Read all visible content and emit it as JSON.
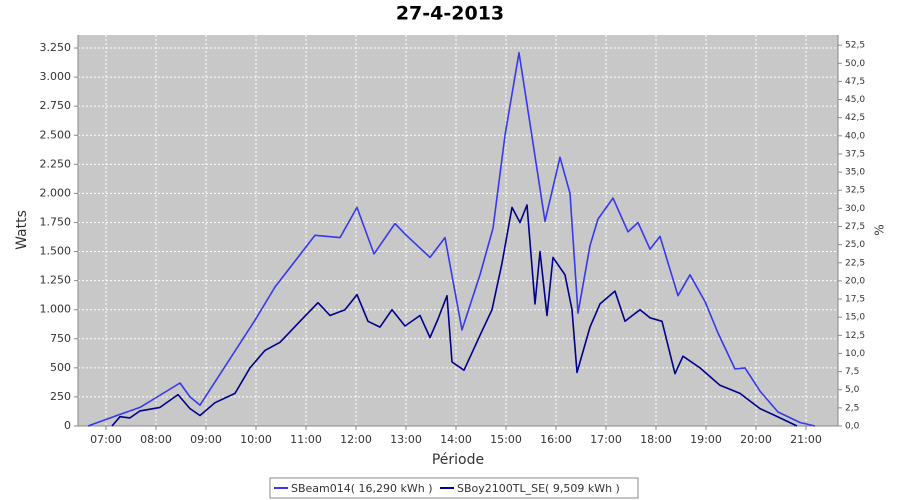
{
  "chart_data": {
    "type": "line",
    "title": "27-4-2013",
    "x_label": "Période",
    "y_label": "Watts",
    "y2_label": "%",
    "xlim": [
      6.44,
      21.64
    ],
    "xticks": [
      {
        "value": 7,
        "label": "07:00"
      },
      {
        "value": 8,
        "label": "08:00"
      },
      {
        "value": 9,
        "label": "09:00"
      },
      {
        "value": 10,
        "label": "10:00"
      },
      {
        "value": 11,
        "label": "11:00"
      },
      {
        "value": 12,
        "label": "12:00"
      },
      {
        "value": 13,
        "label": "13:00"
      },
      {
        "value": 14,
        "label": "14:00"
      },
      {
        "value": 15,
        "label": "15:00"
      },
      {
        "value": 16,
        "label": "16:00"
      },
      {
        "value": 17,
        "label": "17:00"
      },
      {
        "value": 18,
        "label": "18:00"
      },
      {
        "value": 19,
        "label": "19:00"
      },
      {
        "value": 20,
        "label": "20:00"
      },
      {
        "value": 21,
        "label": "21:00"
      }
    ],
    "ylim": [
      0,
      3362
    ],
    "yticks": [
      0,
      250,
      500,
      750,
      {
        "value": 1000,
        "label": "1.000"
      },
      {
        "value": 1250,
        "label": "1.250"
      },
      {
        "value": 1500,
        "label": "1.500"
      },
      {
        "value": 1750,
        "label": "1.750"
      },
      {
        "value": 2000,
        "label": "2.000"
      },
      {
        "value": 2250,
        "label": "2.250"
      },
      {
        "value": 2500,
        "label": "2.500"
      },
      {
        "value": 2750,
        "label": "2.750"
      },
      {
        "value": 3000,
        "label": "3.000"
      },
      {
        "value": 3250,
        "label": "3.250"
      }
    ],
    "y2lim": [
      0,
      53.9
    ],
    "y2ticks": [
      {
        "value": 0,
        "label": "0,0"
      },
      {
        "value": 2.5,
        "label": "2,5"
      },
      {
        "value": 5,
        "label": "5,0"
      },
      {
        "value": 7.5,
        "label": "7,5"
      },
      {
        "value": 10,
        "label": "10,0"
      },
      {
        "value": 12.5,
        "label": "12,5"
      },
      {
        "value": 15,
        "label": "15,0"
      },
      {
        "value": 17.5,
        "label": "17,5"
      },
      {
        "value": 20,
        "label": "20,0"
      },
      {
        "value": 22.5,
        "label": "22,5"
      },
      {
        "value": 25,
        "label": "25,0"
      },
      {
        "value": 27.5,
        "label": "27,5"
      },
      {
        "value": 30,
        "label": "30,0"
      },
      {
        "value": 32.5,
        "label": "32,5"
      },
      {
        "value": 35,
        "label": "35,0"
      },
      {
        "value": 37.5,
        "label": "37,5"
      },
      {
        "value": 40,
        "label": "40,0"
      },
      {
        "value": 42.5,
        "label": "42,5"
      },
      {
        "value": 45,
        "label": "45,0"
      },
      {
        "value": 47.5,
        "label": "47,5"
      },
      {
        "value": 50,
        "label": "50,0"
      },
      {
        "value": 52.5,
        "label": "52,5"
      }
    ],
    "grid": true,
    "legend": "bottom",
    "series": [
      {
        "name": "SBeam014( 16,290 kWh )",
        "color": "#3838ee",
        "x": [
          6.64,
          7.28,
          7.68,
          8.48,
          8.68,
          8.88,
          9.98,
          10.38,
          11.18,
          11.68,
          12.02,
          12.36,
          12.78,
          12.98,
          13.48,
          13.78,
          14.12,
          14.48,
          14.74,
          14.98,
          15.26,
          15.48,
          15.78,
          16.08,
          16.28,
          16.44,
          16.68,
          16.84,
          17.14,
          17.44,
          17.64,
          17.88,
          18.08,
          18.44,
          18.68,
          18.98,
          19.24,
          19.58,
          19.78,
          20.08,
          20.44,
          20.88,
          21.18
        ],
        "values": [
          0,
          100,
          160,
          370,
          250,
          180,
          910,
          1195,
          1640,
          1620,
          1880,
          1480,
          1740,
          1650,
          1450,
          1620,
          826,
          1300,
          1700,
          2500,
          3210,
          2600,
          1760,
          2310,
          2000,
          970,
          1550,
          1780,
          1960,
          1670,
          1750,
          1520,
          1630,
          1120,
          1300,
          1070,
          800,
          490,
          500,
          300,
          120,
          30,
          0
        ]
      },
      {
        "name": "SBoy2100TL_SE( 9,509 kWh )",
        "color": "#00008b",
        "x": [
          7.12,
          7.28,
          7.48,
          7.68,
          8.08,
          8.44,
          8.68,
          8.88,
          9.18,
          9.58,
          9.88,
          10.18,
          10.48,
          10.88,
          11.24,
          11.48,
          11.78,
          12.02,
          12.24,
          12.48,
          12.72,
          12.98,
          13.28,
          13.48,
          13.64,
          13.82,
          13.92,
          14.16,
          14.48,
          14.72,
          14.92,
          15.12,
          15.28,
          15.42,
          15.58,
          15.68,
          15.82,
          15.94,
          16.18,
          16.32,
          16.42,
          16.68,
          16.88,
          17.18,
          17.38,
          17.68,
          17.88,
          18.12,
          18.38,
          18.54,
          18.88,
          19.28,
          19.68,
          20.08,
          20.48,
          20.82
        ],
        "values": [
          0,
          80,
          70,
          130,
          160,
          270,
          150,
          90,
          200,
          280,
          500,
          650,
          720,
          900,
          1060,
          950,
          1000,
          1130,
          900,
          850,
          1000,
          860,
          950,
          760,
          920,
          1120,
          550,
          480,
          780,
          1000,
          1400,
          1880,
          1750,
          1900,
          1050,
          1500,
          950,
          1450,
          1300,
          1000,
          460,
          850,
          1050,
          1160,
          900,
          1000,
          930,
          900,
          450,
          600,
          500,
          350,
          280,
          150,
          70,
          0
        ]
      }
    ]
  }
}
